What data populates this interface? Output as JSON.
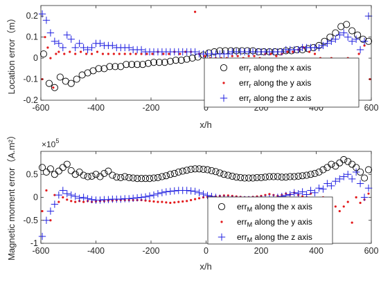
{
  "colors": {
    "x_series": "#000000",
    "y_series": "#e31a1c",
    "z_series": "#1f1fe0",
    "axes": "#262626"
  },
  "chart_data": [
    {
      "type": "scatter",
      "ylabel": "Location error（m）",
      "xlabel": "x/h",
      "xlim": [
        -600,
        600
      ],
      "ylim": [
        -0.2,
        0.25
      ],
      "xticks": [
        -600,
        -400,
        -200,
        0,
        200,
        400,
        600
      ],
      "yticks": [
        -0.2,
        -0.1,
        0,
        0.1,
        0.2
      ],
      "xtick_labels": [
        "-600",
        "-400",
        "-200",
        "0",
        "200",
        "400",
        "600"
      ],
      "ytick_labels": [
        "-0.2",
        "-0.1",
        "0",
        "0.1",
        "0.2"
      ],
      "legend_position": "bottom-right",
      "legend": [
        {
          "main": "err",
          "sub": "r",
          "rest": " along the x axis",
          "marker": "circle"
        },
        {
          "main": "err",
          "sub": "r",
          "rest": " along the y axis",
          "marker": "dot"
        },
        {
          "main": "err",
          "sub": "r",
          "rest": " along the z axis",
          "marker": "plus"
        }
      ],
      "series": [
        {
          "marker": "circle",
          "color": "x_series",
          "x": [
            -590,
            -570,
            -550,
            -530,
            -510,
            -490,
            -470,
            -450,
            -430,
            -410,
            -390,
            -370,
            -350,
            -330,
            -310,
            -290,
            -270,
            -250,
            -230,
            -210,
            -190,
            -170,
            -150,
            -130,
            -110,
            -90,
            -70,
            -50,
            -30,
            -10,
            10,
            30,
            50,
            70,
            90,
            110,
            130,
            150,
            170,
            190,
            210,
            230,
            250,
            270,
            290,
            310,
            330,
            350,
            370,
            390,
            410,
            430,
            450,
            470,
            490,
            510,
            530,
            550,
            570,
            590
          ],
          "y": [
            0.02,
            -0.12,
            -0.14,
            -0.09,
            -0.11,
            -0.12,
            -0.1,
            -0.08,
            -0.07,
            -0.06,
            -0.05,
            -0.05,
            -0.04,
            -0.04,
            -0.04,
            -0.03,
            -0.03,
            -0.03,
            -0.03,
            -0.025,
            -0.02,
            -0.02,
            -0.02,
            -0.015,
            -0.01,
            -0.01,
            -0.005,
            0.0,
            0.005,
            0.015,
            0.025,
            0.03,
            0.035,
            0.035,
            0.035,
            0.035,
            0.035,
            0.035,
            0.035,
            0.03,
            0.03,
            0.03,
            0.03,
            0.03,
            0.035,
            0.035,
            0.04,
            0.04,
            0.045,
            0.05,
            0.06,
            0.08,
            0.1,
            0.12,
            0.15,
            0.16,
            0.13,
            0.11,
            0.09,
            0.08
          ]
        },
        {
          "marker": "dot",
          "color": "y_series",
          "x": [
            -595,
            -585,
            -575,
            -565,
            -555,
            -545,
            -535,
            -515,
            -495,
            -475,
            -455,
            -435,
            -415,
            -395,
            -375,
            -355,
            -335,
            -315,
            -295,
            -275,
            -255,
            -235,
            -215,
            -195,
            -175,
            -155,
            -135,
            -115,
            -95,
            -75,
            -55,
            -40,
            -25,
            -5,
            15,
            35,
            55,
            75,
            95,
            115,
            135,
            155,
            175,
            195,
            215,
            235,
            255,
            275,
            295,
            315,
            335,
            355,
            375,
            395,
            415,
            435,
            455,
            475,
            495,
            515,
            535,
            555,
            575,
            595
          ],
          "y": [
            -0.1,
            0.1,
            0.05,
            0.0,
            -0.14,
            0.02,
            0.03,
            0.02,
            0.03,
            0.02,
            0.03,
            0.02,
            0.02,
            0.03,
            0.02,
            0.02,
            0.02,
            0.02,
            0.02,
            0.02,
            0.02,
            0.02,
            0.02,
            0.02,
            0.03,
            0.02,
            0.02,
            0.03,
            0.02,
            0.03,
            0.03,
            0.22,
            0.02,
            0.01,
            0.0,
            0.0,
            0.0,
            0.0,
            0.01,
            0.01,
            0.0,
            0.01,
            0.01,
            0.0,
            0.02,
            0.02,
            0.01,
            0.02,
            0.03,
            0.03,
            0.04,
            0.05,
            0.03,
            0.02,
            0.0,
            -0.02,
            0.0,
            -0.03,
            -0.02,
            0.0,
            -0.05,
            0.02,
            0.06,
            -0.1
          ]
        },
        {
          "marker": "plus",
          "color": "z_series",
          "x": [
            -595,
            -580,
            -565,
            -550,
            -535,
            -520,
            -505,
            -490,
            -475,
            -460,
            -445,
            -430,
            -415,
            -400,
            -385,
            -370,
            -355,
            -340,
            -325,
            -310,
            -295,
            -280,
            -265,
            -250,
            -235,
            -220,
            -205,
            -190,
            -175,
            -160,
            -145,
            -130,
            -115,
            -100,
            -85,
            -70,
            -55,
            -40,
            -25,
            -10,
            5,
            20,
            35,
            50,
            65,
            80,
            95,
            110,
            125,
            140,
            155,
            170,
            185,
            200,
            215,
            230,
            245,
            260,
            275,
            290,
            305,
            320,
            335,
            350,
            365,
            380,
            395,
            410,
            425,
            440,
            455,
            470,
            485,
            500,
            515,
            530,
            545,
            560,
            575,
            590
          ],
          "y": [
            0.21,
            0.18,
            0.12,
            0.08,
            0.07,
            0.05,
            0.11,
            0.09,
            0.05,
            0.07,
            0.05,
            0.04,
            0.05,
            0.07,
            0.07,
            0.06,
            0.06,
            0.06,
            0.05,
            0.05,
            0.05,
            0.05,
            0.04,
            0.04,
            0.04,
            0.03,
            0.03,
            0.03,
            0.03,
            0.03,
            0.03,
            0.03,
            0.03,
            0.03,
            0.03,
            0.03,
            0.03,
            0.03,
            0.02,
            0.02,
            0.02,
            0.02,
            0.02,
            0.02,
            0.02,
            0.02,
            0.03,
            0.03,
            0.03,
            0.03,
            0.03,
            0.03,
            0.03,
            0.03,
            0.03,
            0.03,
            0.03,
            0.03,
            0.03,
            0.04,
            0.04,
            0.04,
            0.04,
            0.05,
            0.05,
            0.05,
            0.05,
            0.05,
            0.06,
            0.07,
            0.08,
            0.09,
            0.11,
            0.12,
            0.1,
            0.08,
            0.09,
            0.04,
            0.08,
            0.2
          ]
        }
      ]
    },
    {
      "type": "scatter",
      "ylabel": "Magnetic moment error（A.m²）",
      "xlabel": "x/h",
      "exponent_label": "×10",
      "exponent_power": "5",
      "xlim": [
        -600,
        600
      ],
      "ylim": [
        -1.0,
        1.0
      ],
      "xticks": [
        -600,
        -400,
        -200,
        0,
        200,
        400,
        600
      ],
      "yticks": [
        -1,
        -0.5,
        0,
        0.5
      ],
      "xtick_labels": [
        "-600",
        "-400",
        "-200",
        "0",
        "200",
        "400",
        "600"
      ],
      "ytick_labels": [
        "-1",
        "-0.5",
        "0",
        "0.5"
      ],
      "legend_position": "bottom-right",
      "legend": [
        {
          "main": "err",
          "sub": "M",
          "rest": " along the x axis",
          "marker": "circle"
        },
        {
          "main": "err",
          "sub": "M",
          "rest": " along the y axis",
          "marker": "dot"
        },
        {
          "main": "err",
          "sub": "M",
          "rest": " along the z axis",
          "marker": "plus"
        }
      ],
      "series": [
        {
          "marker": "circle",
          "color": "x_series",
          "x": [
            -595,
            -580,
            -565,
            -550,
            -535,
            -520,
            -505,
            -490,
            -475,
            -460,
            -445,
            -430,
            -415,
            -400,
            -385,
            -370,
            -355,
            -340,
            -325,
            -310,
            -295,
            -280,
            -265,
            -250,
            -235,
            -220,
            -205,
            -190,
            -175,
            -160,
            -145,
            -130,
            -115,
            -100,
            -85,
            -70,
            -55,
            -40,
            -25,
            -10,
            5,
            20,
            35,
            50,
            65,
            80,
            95,
            110,
            125,
            140,
            155,
            170,
            185,
            200,
            215,
            230,
            245,
            260,
            275,
            290,
            305,
            320,
            335,
            350,
            365,
            380,
            395,
            410,
            425,
            440,
            455,
            470,
            485,
            500,
            515,
            530,
            545,
            560,
            575,
            590
          ],
          "y": [
            0.65,
            0.55,
            0.62,
            0.5,
            0.57,
            0.65,
            0.72,
            0.58,
            0.5,
            0.55,
            0.48,
            0.45,
            0.46,
            0.5,
            0.45,
            0.52,
            0.57,
            0.48,
            0.44,
            0.43,
            0.45,
            0.43,
            0.42,
            0.41,
            0.41,
            0.41,
            0.41,
            0.42,
            0.43,
            0.45,
            0.47,
            0.5,
            0.52,
            0.55,
            0.57,
            0.59,
            0.61,
            0.62,
            0.62,
            0.61,
            0.6,
            0.58,
            0.56,
            0.53,
            0.5,
            0.48,
            0.46,
            0.44,
            0.43,
            0.42,
            0.42,
            0.42,
            0.43,
            0.43,
            0.44,
            0.45,
            0.45,
            0.45,
            0.44,
            0.44,
            0.45,
            0.45,
            0.46,
            0.47,
            0.48,
            0.5,
            0.52,
            0.55,
            0.6,
            0.65,
            0.72,
            0.68,
            0.75,
            0.82,
            0.78,
            0.72,
            0.65,
            0.55,
            0.42,
            0.6
          ]
        },
        {
          "marker": "dot",
          "color": "y_series",
          "x": [
            -595,
            -580,
            -565,
            -550,
            -535,
            -520,
            -505,
            -490,
            -475,
            -460,
            -445,
            -430,
            -415,
            -400,
            -385,
            -370,
            -355,
            -340,
            -325,
            -310,
            -295,
            -280,
            -265,
            -250,
            -235,
            -220,
            -205,
            -190,
            -175,
            -160,
            -145,
            -130,
            -115,
            -100,
            -85,
            -70,
            -55,
            -40,
            -25,
            -10,
            5,
            20,
            35,
            50,
            65,
            80,
            95,
            110,
            125,
            140,
            155,
            170,
            185,
            200,
            215,
            230,
            245,
            260,
            275,
            290,
            305,
            320,
            335,
            350,
            365,
            380,
            395,
            410,
            425,
            440,
            455,
            470,
            485,
            500,
            515,
            530,
            545,
            560,
            575,
            590
          ],
          "y": [
            -0.3,
            0.15,
            -0.5,
            0.05,
            -0.1,
            0.0,
            -0.05,
            -0.08,
            -0.1,
            -0.08,
            -0.1,
            -0.08,
            -0.1,
            -0.09,
            -0.08,
            -0.08,
            -0.07,
            -0.07,
            -0.06,
            -0.06,
            -0.06,
            -0.06,
            -0.06,
            -0.06,
            -0.06,
            -0.07,
            -0.08,
            -0.09,
            -0.1,
            -0.1,
            -0.11,
            -0.12,
            -0.11,
            -0.1,
            -0.09,
            -0.08,
            -0.06,
            -0.04,
            -0.02,
            0.0,
            0.01,
            0.02,
            0.02,
            0.03,
            0.04,
            0.04,
            0.03,
            0.02,
            0.01,
            0.0,
            0.0,
            0.01,
            0.02,
            0.03,
            0.05,
            0.07,
            0.05,
            0.03,
            0.05,
            0.08,
            0.06,
            0.1,
            0.05,
            0.02,
            0.0,
            0.08,
            -0.05,
            -0.1,
            0.0,
            -0.08,
            -0.12,
            -0.2,
            -0.3,
            -0.2,
            -0.1,
            -0.55,
            0.0,
            -0.12,
            -0.05,
            0.08
          ]
        },
        {
          "marker": "plus",
          "color": "z_series",
          "x": [
            -595,
            -580,
            -565,
            -550,
            -535,
            -520,
            -505,
            -490,
            -475,
            -460,
            -445,
            -430,
            -415,
            -400,
            -385,
            -370,
            -355,
            -340,
            -325,
            -310,
            -295,
            -280,
            -265,
            -250,
            -235,
            -220,
            -205,
            -190,
            -175,
            -160,
            -145,
            -130,
            -115,
            -100,
            -85,
            -70,
            -55,
            -40,
            -25,
            -10,
            5,
            20,
            35,
            50,
            65,
            80,
            95,
            110,
            125,
            140,
            155,
            170,
            185,
            200,
            215,
            230,
            245,
            260,
            275,
            290,
            305,
            320,
            335,
            350,
            365,
            380,
            395,
            410,
            425,
            440,
            455,
            470,
            485,
            500,
            515,
            530,
            545,
            560,
            575,
            590
          ],
          "y": [
            -0.85,
            -0.5,
            -0.3,
            -0.15,
            0.05,
            0.15,
            0.08,
            0.05,
            0.02,
            -0.02,
            0.0,
            -0.03,
            -0.05,
            -0.06,
            -0.06,
            -0.05,
            -0.05,
            -0.04,
            -0.04,
            -0.04,
            -0.03,
            -0.03,
            -0.02,
            -0.01,
            0.0,
            0.01,
            0.03,
            0.05,
            0.08,
            0.1,
            0.12,
            0.13,
            0.14,
            0.15,
            0.15,
            0.15,
            0.14,
            0.13,
            0.1,
            0.07,
            0.04,
            0.02,
            0.0,
            -0.02,
            -0.03,
            -0.04,
            -0.04,
            -0.05,
            -0.05,
            -0.05,
            -0.05,
            -0.05,
            -0.05,
            -0.04,
            -0.03,
            -0.02,
            -0.01,
            0.0,
            0.02,
            0.04,
            0.06,
            0.1,
            0.08,
            0.12,
            0.06,
            0.15,
            0.1,
            0.2,
            0.18,
            0.3,
            0.25,
            0.35,
            0.4,
            0.45,
            0.5,
            0.4,
            0.55,
            0.3,
            0.0,
            0.2
          ]
        }
      ]
    }
  ]
}
